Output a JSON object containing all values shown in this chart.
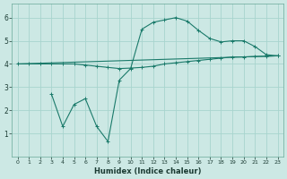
{
  "xlabel": "Humidex (Indice chaleur)",
  "bg_color": "#cce8e4",
  "grid_color": "#a8d4ce",
  "line_color": "#1a7a6a",
  "xlim": [
    -0.5,
    23.5
  ],
  "ylim": [
    0,
    6.6
  ],
  "xticks": [
    0,
    1,
    2,
    3,
    4,
    5,
    6,
    7,
    8,
    9,
    10,
    11,
    12,
    13,
    14,
    15,
    16,
    17,
    18,
    19,
    20,
    21,
    22,
    23
  ],
  "yticks": [
    1,
    2,
    3,
    4,
    5,
    6
  ],
  "line1_x": [
    0,
    1,
    2,
    3,
    4,
    5,
    6,
    7,
    8,
    9,
    10,
    11,
    12,
    13,
    14,
    15,
    16,
    17,
    18,
    19,
    20,
    21,
    22,
    23
  ],
  "line1_y": [
    4.0,
    4.0,
    4.0,
    4.0,
    4.0,
    4.0,
    3.95,
    3.9,
    3.85,
    3.8,
    3.82,
    3.85,
    3.9,
    4.0,
    4.05,
    4.1,
    4.15,
    4.2,
    4.25,
    4.3,
    4.3,
    4.32,
    4.33,
    4.35
  ],
  "line2_x": [
    0,
    23
  ],
  "line2_y": [
    4.0,
    4.35
  ],
  "line3_x": [
    3,
    4,
    5,
    6,
    7,
    8,
    9,
    10,
    11,
    12,
    13,
    14,
    15,
    16,
    17,
    18,
    19,
    20,
    21,
    22,
    23
  ],
  "line3_y": [
    2.7,
    1.3,
    2.25,
    2.5,
    1.3,
    0.65,
    3.3,
    3.8,
    5.5,
    5.8,
    5.9,
    6.0,
    5.85,
    5.45,
    5.1,
    4.95,
    5.0,
    5.0,
    4.75,
    4.4,
    4.35
  ]
}
